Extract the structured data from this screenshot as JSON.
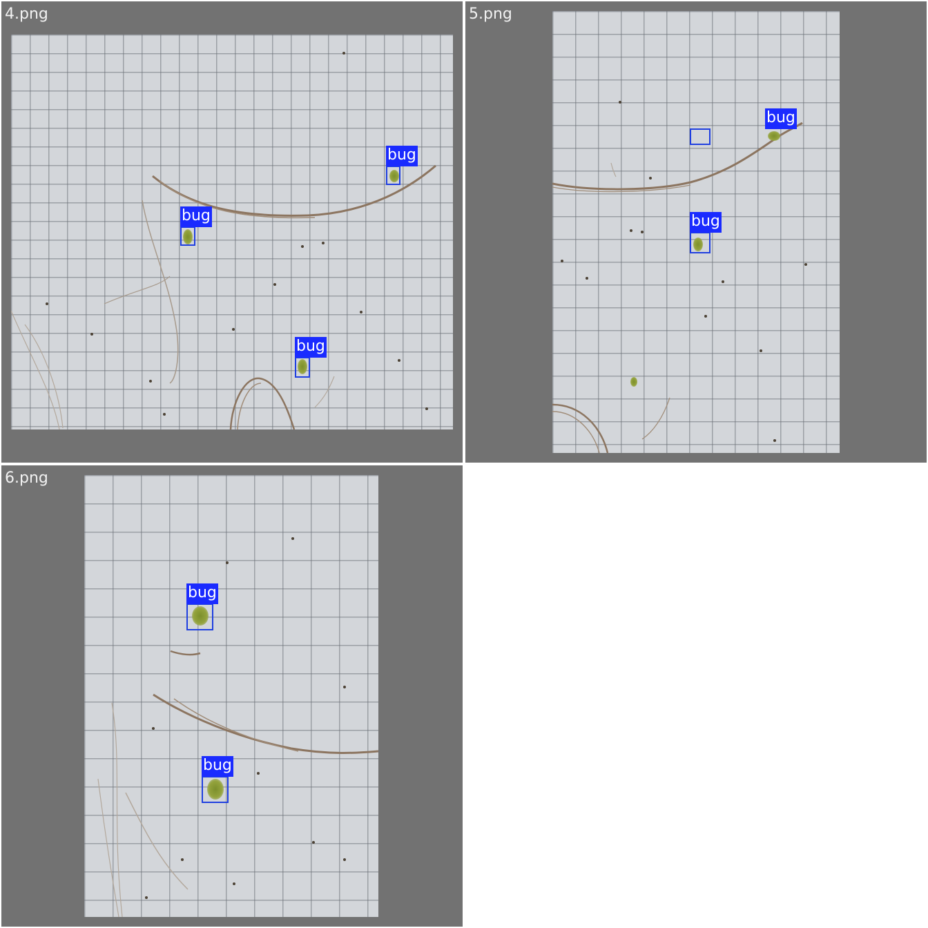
{
  "panels": [
    {
      "title": "4.png",
      "detections": [
        {
          "label": "bug"
        },
        {
          "label": "bug"
        },
        {
          "label": "bug"
        }
      ]
    },
    {
      "title": "5.png",
      "detections": [
        {
          "label": "bug"
        },
        {
          "label": "bug"
        }
      ]
    },
    {
      "title": "6.png",
      "detections": [
        {
          "label": "bug"
        },
        {
          "label": "bug"
        }
      ]
    }
  ],
  "colors": {
    "panel_background": "#727272",
    "box_stroke": "#1f3fe0",
    "label_background": "#1a2bff",
    "label_text": "#ffffff"
  }
}
